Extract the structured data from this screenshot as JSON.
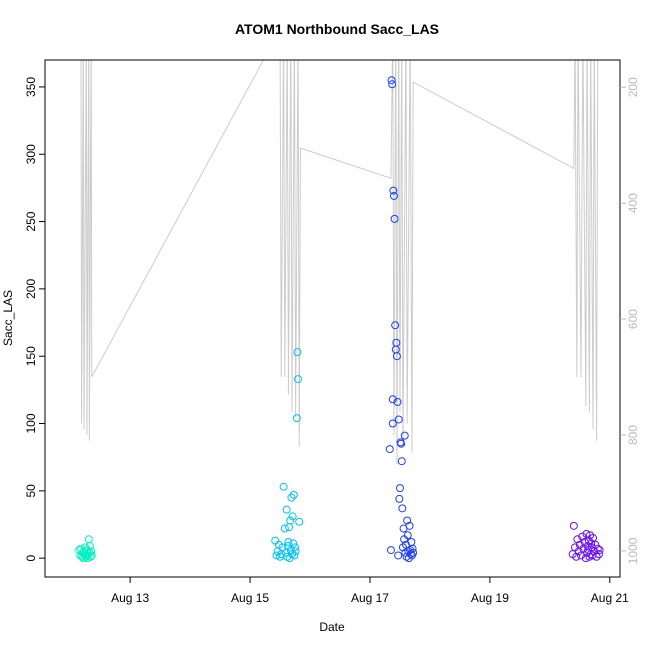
{
  "chart_data": {
    "type": "scatter",
    "title": "ATOM1 Northbound Sacc_LAS",
    "x_label": "Date",
    "y_label": "Sacc_LAS",
    "xlim": [
      11.58,
      21.17
    ],
    "xticks": [
      {
        "value": 13,
        "label": "Aug 13"
      },
      {
        "value": 15,
        "label": "Aug 15"
      },
      {
        "value": 17,
        "label": "Aug 17"
      },
      {
        "value": 19,
        "label": "Aug 19"
      },
      {
        "value": 21,
        "label": "Aug 21"
      }
    ],
    "ylim": [
      -14,
      370
    ],
    "yticks": [
      0,
      50,
      100,
      150,
      200,
      250,
      300,
      350
    ],
    "y2lim": [
      1045,
      153
    ],
    "y2ticks": [
      200,
      400,
      600,
      800,
      1000
    ],
    "y2_color": "#bbbbbb",
    "series": [
      {
        "color": "#00f0c0",
        "x": [
          12.15,
          12.17,
          12.18,
          12.2,
          12.21,
          12.22,
          12.23,
          12.24,
          12.25,
          12.26,
          12.27,
          12.28,
          12.29,
          12.3,
          12.31,
          12.32,
          12.33,
          12.34,
          12.35,
          12.36
        ],
        "values": [
          6,
          2,
          7,
          1,
          4,
          0,
          5,
          3,
          8,
          1,
          2,
          6,
          0,
          3,
          14,
          4,
          9,
          1,
          5,
          2
        ]
      },
      {
        "color": "#00c0f8",
        "x": [
          15.42,
          15.44,
          15.46,
          15.48,
          15.5,
          15.52,
          15.54,
          15.56,
          15.58,
          15.6,
          15.61,
          15.62,
          15.63,
          15.64,
          15.65,
          15.66,
          15.67,
          15.68,
          15.69,
          15.7,
          15.71,
          15.72,
          15.73,
          15.74,
          15.75,
          15.76,
          15.78,
          15.79,
          15.8,
          15.82
        ],
        "values": [
          13,
          2,
          5,
          10,
          1,
          3,
          8,
          53,
          22,
          4,
          36,
          1,
          9,
          12,
          23,
          0,
          28,
          6,
          45,
          3,
          31,
          11,
          47,
          2,
          8,
          5,
          104,
          153,
          133,
          27
        ]
      },
      {
        "color": "#1f3ff5",
        "x": [
          17.33,
          17.35,
          17.36,
          17.37,
          17.38,
          17.39,
          17.4,
          17.41,
          17.42,
          17.43,
          17.44,
          17.45,
          17.46,
          17.47,
          17.48,
          17.49,
          17.5,
          17.51,
          17.52,
          17.53,
          17.54,
          17.55,
          17.56,
          17.57,
          17.58,
          17.59,
          17.6,
          17.61,
          17.62,
          17.63,
          17.64,
          17.65,
          17.66,
          17.67,
          17.68,
          17.69,
          17.7,
          17.71,
          17.72,
          17.38
        ],
        "values": [
          81,
          6,
          355,
          352,
          118,
          273,
          269,
          252,
          173,
          155,
          160,
          150,
          116,
          2,
          103,
          44,
          52,
          86,
          85,
          72,
          37,
          8,
          22,
          14,
          91,
          4,
          10,
          1,
          28,
          17,
          5,
          0,
          24,
          6,
          3,
          12,
          2,
          7,
          4,
          100
        ]
      },
      {
        "color": "#6a10f8",
        "x": [
          20.38,
          20.4,
          20.42,
          20.44,
          20.46,
          20.48,
          20.5,
          20.52,
          20.54,
          20.56,
          20.58,
          20.6,
          20.61,
          20.62,
          20.63,
          20.64,
          20.65,
          20.66,
          20.67,
          20.68,
          20.69,
          20.7,
          20.71,
          20.72,
          20.74,
          20.76,
          20.78,
          20.8,
          20.82,
          20.83
        ],
        "values": [
          3,
          24,
          8,
          1,
          14,
          5,
          10,
          2,
          16,
          7,
          12,
          0,
          18,
          4,
          9,
          6,
          13,
          1,
          17,
          3,
          11,
          8,
          2,
          15,
          5,
          10,
          1,
          7,
          3,
          6
        ]
      },
      {
        "type": "line",
        "axis": "y2",
        "color": "#cccccc",
        "x": [
          12.18,
          12.19,
          12.22,
          12.23,
          12.27,
          12.28,
          12.31,
          12.32,
          12.35,
          12.36,
          15.5,
          15.52,
          15.56,
          15.58,
          15.62,
          15.64,
          15.68,
          15.7,
          15.74,
          15.76,
          15.8,
          15.82,
          15.84,
          17.35,
          17.38,
          17.4,
          17.43,
          17.45,
          17.48,
          17.5,
          17.53,
          17.55,
          17.6,
          17.62,
          17.67,
          17.7,
          17.72,
          20.4,
          20.42,
          20.45,
          20.47,
          20.52,
          20.55,
          20.6,
          20.62,
          20.66,
          20.68,
          20.72,
          20.74,
          20.78,
          20.8
        ],
        "values": [
          100,
          780,
          100,
          790,
          100,
          800,
          100,
          810,
          100,
          700,
          100,
          700,
          100,
          700,
          100,
          730,
          100,
          760,
          100,
          770,
          100,
          820,
          305,
          357,
          100,
          800,
          100,
          850,
          100,
          760,
          100,
          820,
          100,
          780,
          100,
          830,
          191,
          340,
          100,
          700,
          100,
          700,
          100,
          750,
          100,
          760,
          100,
          790,
          100,
          810,
          100
        ]
      }
    ]
  }
}
